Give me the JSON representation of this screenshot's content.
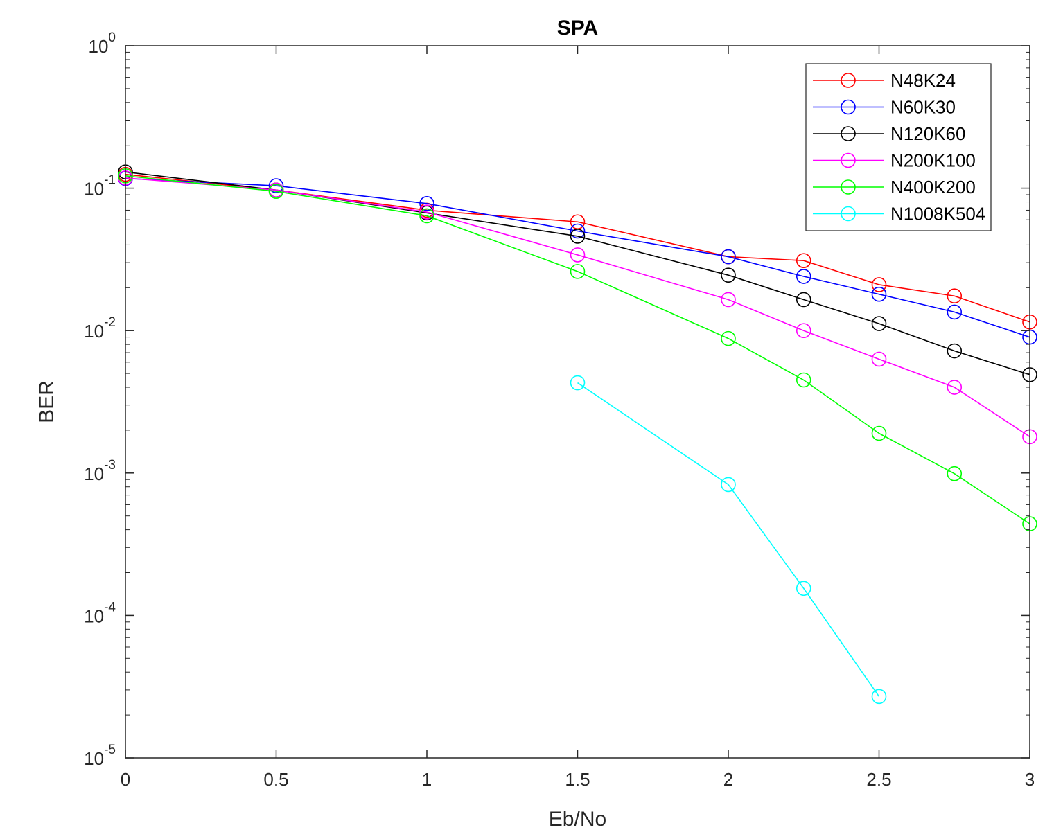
{
  "chart_data": {
    "type": "line",
    "title": "SPA",
    "xlabel": "Eb/No",
    "ylabel": "BER",
    "xlim": [
      0,
      3
    ],
    "ylim": [
      1e-05,
      1
    ],
    "yscale": "log",
    "grid": false,
    "legend_position": "top-right",
    "marker": "circle",
    "x_ticks": [
      {
        "value": 0,
        "label": "0"
      },
      {
        "value": 0.5,
        "label": "0.5"
      },
      {
        "value": 1,
        "label": "1"
      },
      {
        "value": 1.5,
        "label": "1.5"
      },
      {
        "value": 2,
        "label": "2"
      },
      {
        "value": 2.5,
        "label": "2.5"
      },
      {
        "value": 3,
        "label": "3"
      }
    ],
    "y_ticks": [
      {
        "value": 1,
        "base": "10",
        "exp": "0"
      },
      {
        "value": 0.1,
        "base": "10",
        "exp": "-1"
      },
      {
        "value": 0.01,
        "base": "10",
        "exp": "-2"
      },
      {
        "value": 0.001,
        "base": "10",
        "exp": "-3"
      },
      {
        "value": 0.0001,
        "base": "10",
        "exp": "-4"
      },
      {
        "value": 1e-05,
        "base": "10",
        "exp": "-5"
      }
    ],
    "series": [
      {
        "name": "N48K24",
        "color": "#ff0000",
        "x": [
          0,
          0.5,
          1,
          1.5,
          2,
          2.25,
          2.5,
          2.75,
          3
        ],
        "y": [
          0.125,
          0.097,
          0.07,
          0.058,
          0.033,
          0.031,
          0.021,
          0.0175,
          0.0115
        ]
      },
      {
        "name": "N60K30",
        "color": "#0000ff",
        "x": [
          0,
          0.5,
          1,
          1.5,
          2,
          2.25,
          2.5,
          2.75,
          3
        ],
        "y": [
          0.117,
          0.104,
          0.078,
          0.05,
          0.033,
          0.024,
          0.018,
          0.0135,
          0.009
        ]
      },
      {
        "name": "N120K60",
        "color": "#000000",
        "x": [
          0,
          0.5,
          1,
          1.5,
          2,
          2.25,
          2.5,
          2.75,
          3
        ],
        "y": [
          0.13,
          0.097,
          0.067,
          0.046,
          0.0245,
          0.0165,
          0.0112,
          0.0072,
          0.0049
        ]
      },
      {
        "name": "N200K100",
        "color": "#ff00ff",
        "x": [
          0,
          0.5,
          1,
          1.5,
          2,
          2.25,
          2.5,
          2.75,
          3
        ],
        "y": [
          0.118,
          0.097,
          0.068,
          0.034,
          0.0165,
          0.01,
          0.0063,
          0.004,
          0.0018
        ]
      },
      {
        "name": "N400K200",
        "color": "#00ff00",
        "x": [
          0,
          0.5,
          1,
          1.5,
          2,
          2.25,
          2.5,
          2.75,
          3
        ],
        "y": [
          0.122,
          0.095,
          0.064,
          0.026,
          0.0088,
          0.0045,
          0.0019,
          0.00099,
          0.00044
        ]
      },
      {
        "name": "N1008K504",
        "color": "#00ffff",
        "x": [
          1.5,
          2,
          2.25,
          2.5
        ],
        "y": [
          0.0043,
          0.00083,
          0.000155,
          2.7e-05
        ]
      }
    ]
  }
}
